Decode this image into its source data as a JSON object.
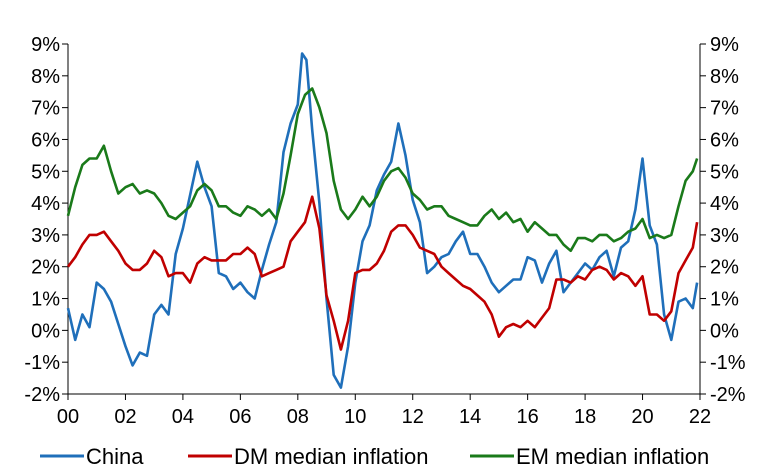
{
  "chart_data": {
    "type": "line",
    "title": "",
    "xlabel": "",
    "ylabel": "",
    "x_ticks": [
      "00",
      "02",
      "04",
      "06",
      "08",
      "10",
      "12",
      "14",
      "16",
      "18",
      "20",
      "22"
    ],
    "y_ticks": [
      "9%",
      "8%",
      "7%",
      "6%",
      "5%",
      "4%",
      "3%",
      "2%",
      "1%",
      "0%",
      "-1%",
      "-2%"
    ],
    "ylim": [
      -2,
      9
    ],
    "xlim": [
      2000,
      2022
    ],
    "grid": false,
    "legend_position": "bottom",
    "series": [
      {
        "name": "China",
        "color": "#1f6fba",
        "points": [
          [
            2000.0,
            0.7
          ],
          [
            2000.25,
            -0.3
          ],
          [
            2000.5,
            0.5
          ],
          [
            2000.75,
            0.1
          ],
          [
            2001.0,
            1.5
          ],
          [
            2001.25,
            1.3
          ],
          [
            2001.5,
            0.9
          ],
          [
            2001.75,
            0.2
          ],
          [
            2002.0,
            -0.5
          ],
          [
            2002.25,
            -1.1
          ],
          [
            2002.5,
            -0.7
          ],
          [
            2002.75,
            -0.8
          ],
          [
            2003.0,
            0.5
          ],
          [
            2003.25,
            0.8
          ],
          [
            2003.5,
            0.5
          ],
          [
            2003.75,
            2.4
          ],
          [
            2004.0,
            3.2
          ],
          [
            2004.5,
            5.3
          ],
          [
            2004.75,
            4.5
          ],
          [
            2005.0,
            3.9
          ],
          [
            2005.25,
            1.8
          ],
          [
            2005.5,
            1.7
          ],
          [
            2005.75,
            1.3
          ],
          [
            2006.0,
            1.5
          ],
          [
            2006.25,
            1.2
          ],
          [
            2006.5,
            1.0
          ],
          [
            2006.75,
            1.9
          ],
          [
            2007.0,
            2.7
          ],
          [
            2007.25,
            3.4
          ],
          [
            2007.5,
            5.6
          ],
          [
            2007.75,
            6.5
          ],
          [
            2008.0,
            7.1
          ],
          [
            2008.15,
            8.7
          ],
          [
            2008.3,
            8.5
          ],
          [
            2008.5,
            6.3
          ],
          [
            2008.75,
            4.0
          ],
          [
            2009.0,
            1.0
          ],
          [
            2009.25,
            -1.4
          ],
          [
            2009.5,
            -1.8
          ],
          [
            2009.75,
            -0.5
          ],
          [
            2010.0,
            1.5
          ],
          [
            2010.25,
            2.8
          ],
          [
            2010.5,
            3.3
          ],
          [
            2010.75,
            4.4
          ],
          [
            2011.0,
            4.9
          ],
          [
            2011.25,
            5.3
          ],
          [
            2011.5,
            6.5
          ],
          [
            2011.75,
            5.5
          ],
          [
            2012.0,
            4.1
          ],
          [
            2012.25,
            3.4
          ],
          [
            2012.5,
            1.8
          ],
          [
            2012.75,
            2.0
          ],
          [
            2013.0,
            2.3
          ],
          [
            2013.25,
            2.4
          ],
          [
            2013.5,
            2.8
          ],
          [
            2013.75,
            3.1
          ],
          [
            2014.0,
            2.4
          ],
          [
            2014.25,
            2.4
          ],
          [
            2014.5,
            2.0
          ],
          [
            2014.75,
            1.5
          ],
          [
            2015.0,
            1.2
          ],
          [
            2015.25,
            1.4
          ],
          [
            2015.5,
            1.6
          ],
          [
            2015.75,
            1.6
          ],
          [
            2016.0,
            2.3
          ],
          [
            2016.25,
            2.2
          ],
          [
            2016.5,
            1.5
          ],
          [
            2016.75,
            2.1
          ],
          [
            2017.0,
            2.5
          ],
          [
            2017.25,
            1.2
          ],
          [
            2017.5,
            1.5
          ],
          [
            2017.75,
            1.8
          ],
          [
            2018.0,
            2.1
          ],
          [
            2018.25,
            1.9
          ],
          [
            2018.5,
            2.3
          ],
          [
            2018.75,
            2.5
          ],
          [
            2019.0,
            1.7
          ],
          [
            2019.25,
            2.6
          ],
          [
            2019.5,
            2.8
          ],
          [
            2019.75,
            3.8
          ],
          [
            2020.0,
            5.4
          ],
          [
            2020.25,
            3.3
          ],
          [
            2020.5,
            2.7
          ],
          [
            2020.75,
            0.5
          ],
          [
            2021.0,
            -0.3
          ],
          [
            2021.25,
            0.9
          ],
          [
            2021.5,
            1.0
          ],
          [
            2021.75,
            0.7
          ],
          [
            2021.9,
            1.5
          ]
        ]
      },
      {
        "name": "DM median inflation",
        "color": "#c00000",
        "points": [
          [
            2000.0,
            2.0
          ],
          [
            2000.25,
            2.3
          ],
          [
            2000.5,
            2.7
          ],
          [
            2000.75,
            3.0
          ],
          [
            2001.0,
            3.0
          ],
          [
            2001.25,
            3.1
          ],
          [
            2001.5,
            2.8
          ],
          [
            2001.75,
            2.5
          ],
          [
            2002.0,
            2.1
          ],
          [
            2002.25,
            1.9
          ],
          [
            2002.5,
            1.9
          ],
          [
            2002.75,
            2.1
          ],
          [
            2003.0,
            2.5
          ],
          [
            2003.25,
            2.3
          ],
          [
            2003.5,
            1.7
          ],
          [
            2003.75,
            1.8
          ],
          [
            2004.0,
            1.8
          ],
          [
            2004.25,
            1.5
          ],
          [
            2004.5,
            2.1
          ],
          [
            2004.75,
            2.3
          ],
          [
            2005.0,
            2.2
          ],
          [
            2005.25,
            2.2
          ],
          [
            2005.5,
            2.2
          ],
          [
            2005.75,
            2.4
          ],
          [
            2006.0,
            2.4
          ],
          [
            2006.25,
            2.6
          ],
          [
            2006.5,
            2.4
          ],
          [
            2006.75,
            1.7
          ],
          [
            2007.0,
            1.8
          ],
          [
            2007.25,
            1.9
          ],
          [
            2007.5,
            2.0
          ],
          [
            2007.75,
            2.8
          ],
          [
            2008.0,
            3.1
          ],
          [
            2008.25,
            3.4
          ],
          [
            2008.5,
            4.2
          ],
          [
            2008.75,
            3.2
          ],
          [
            2009.0,
            1.1
          ],
          [
            2009.25,
            0.3
          ],
          [
            2009.5,
            -0.6
          ],
          [
            2009.75,
            0.3
          ],
          [
            2010.0,
            1.8
          ],
          [
            2010.25,
            1.9
          ],
          [
            2010.5,
            1.9
          ],
          [
            2010.75,
            2.1
          ],
          [
            2011.0,
            2.5
          ],
          [
            2011.25,
            3.1
          ],
          [
            2011.5,
            3.3
          ],
          [
            2011.75,
            3.3
          ],
          [
            2012.0,
            3.0
          ],
          [
            2012.25,
            2.6
          ],
          [
            2012.5,
            2.5
          ],
          [
            2012.75,
            2.4
          ],
          [
            2013.0,
            2.0
          ],
          [
            2013.25,
            1.8
          ],
          [
            2013.5,
            1.6
          ],
          [
            2013.75,
            1.4
          ],
          [
            2014.0,
            1.3
          ],
          [
            2014.25,
            1.1
          ],
          [
            2014.5,
            0.9
          ],
          [
            2014.75,
            0.5
          ],
          [
            2015.0,
            -0.2
          ],
          [
            2015.25,
            0.1
          ],
          [
            2015.5,
            0.2
          ],
          [
            2015.75,
            0.1
          ],
          [
            2016.0,
            0.3
          ],
          [
            2016.25,
            0.1
          ],
          [
            2016.5,
            0.4
          ],
          [
            2016.75,
            0.7
          ],
          [
            2017.0,
            1.6
          ],
          [
            2017.25,
            1.6
          ],
          [
            2017.5,
            1.5
          ],
          [
            2017.75,
            1.7
          ],
          [
            2018.0,
            1.6
          ],
          [
            2018.25,
            1.9
          ],
          [
            2018.5,
            2.0
          ],
          [
            2018.75,
            1.9
          ],
          [
            2019.0,
            1.6
          ],
          [
            2019.25,
            1.8
          ],
          [
            2019.5,
            1.7
          ],
          [
            2019.75,
            1.4
          ],
          [
            2020.0,
            1.7
          ],
          [
            2020.25,
            0.5
          ],
          [
            2020.5,
            0.5
          ],
          [
            2020.75,
            0.3
          ],
          [
            2021.0,
            0.6
          ],
          [
            2021.25,
            1.8
          ],
          [
            2021.5,
            2.2
          ],
          [
            2021.75,
            2.6
          ],
          [
            2021.9,
            3.4
          ]
        ]
      },
      {
        "name": "EM median inflation",
        "color": "#1a7a1a",
        "points": [
          [
            2000.0,
            3.6
          ],
          [
            2000.25,
            4.5
          ],
          [
            2000.5,
            5.2
          ],
          [
            2000.75,
            5.4
          ],
          [
            2001.0,
            5.4
          ],
          [
            2001.25,
            5.8
          ],
          [
            2001.5,
            5.0
          ],
          [
            2001.75,
            4.3
          ],
          [
            2002.0,
            4.5
          ],
          [
            2002.25,
            4.6
          ],
          [
            2002.5,
            4.3
          ],
          [
            2002.75,
            4.4
          ],
          [
            2003.0,
            4.3
          ],
          [
            2003.25,
            4.0
          ],
          [
            2003.5,
            3.6
          ],
          [
            2003.75,
            3.5
          ],
          [
            2004.0,
            3.7
          ],
          [
            2004.25,
            3.9
          ],
          [
            2004.5,
            4.4
          ],
          [
            2004.75,
            4.6
          ],
          [
            2005.0,
            4.4
          ],
          [
            2005.25,
            3.9
          ],
          [
            2005.5,
            3.9
          ],
          [
            2005.75,
            3.7
          ],
          [
            2006.0,
            3.6
          ],
          [
            2006.25,
            3.9
          ],
          [
            2006.5,
            3.8
          ],
          [
            2006.75,
            3.6
          ],
          [
            2007.0,
            3.8
          ],
          [
            2007.25,
            3.5
          ],
          [
            2007.5,
            4.3
          ],
          [
            2007.75,
            5.5
          ],
          [
            2008.0,
            6.8
          ],
          [
            2008.25,
            7.4
          ],
          [
            2008.5,
            7.6
          ],
          [
            2008.75,
            7.0
          ],
          [
            2009.0,
            6.2
          ],
          [
            2009.25,
            4.7
          ],
          [
            2009.5,
            3.8
          ],
          [
            2009.75,
            3.5
          ],
          [
            2010.0,
            3.8
          ],
          [
            2010.25,
            4.2
          ],
          [
            2010.5,
            3.9
          ],
          [
            2010.75,
            4.2
          ],
          [
            2011.0,
            4.7
          ],
          [
            2011.25,
            5.0
          ],
          [
            2011.5,
            5.1
          ],
          [
            2011.75,
            4.8
          ],
          [
            2012.0,
            4.3
          ],
          [
            2012.25,
            4.1
          ],
          [
            2012.5,
            3.8
          ],
          [
            2012.75,
            3.9
          ],
          [
            2013.0,
            3.9
          ],
          [
            2013.25,
            3.6
          ],
          [
            2013.5,
            3.5
          ],
          [
            2013.75,
            3.4
          ],
          [
            2014.0,
            3.3
          ],
          [
            2014.25,
            3.3
          ],
          [
            2014.5,
            3.6
          ],
          [
            2014.75,
            3.8
          ],
          [
            2015.0,
            3.5
          ],
          [
            2015.25,
            3.7
          ],
          [
            2015.5,
            3.4
          ],
          [
            2015.75,
            3.5
          ],
          [
            2016.0,
            3.1
          ],
          [
            2016.25,
            3.4
          ],
          [
            2016.5,
            3.2
          ],
          [
            2016.75,
            3.0
          ],
          [
            2017.0,
            3.0
          ],
          [
            2017.25,
            2.7
          ],
          [
            2017.5,
            2.5
          ],
          [
            2017.75,
            2.9
          ],
          [
            2018.0,
            2.9
          ],
          [
            2018.25,
            2.8
          ],
          [
            2018.5,
            3.0
          ],
          [
            2018.75,
            3.0
          ],
          [
            2019.0,
            2.8
          ],
          [
            2019.25,
            2.9
          ],
          [
            2019.5,
            3.1
          ],
          [
            2019.75,
            3.2
          ],
          [
            2020.0,
            3.5
          ],
          [
            2020.25,
            2.9
          ],
          [
            2020.5,
            3.0
          ],
          [
            2020.75,
            2.9
          ],
          [
            2021.0,
            3.0
          ],
          [
            2021.25,
            3.9
          ],
          [
            2021.5,
            4.7
          ],
          [
            2021.75,
            5.0
          ],
          [
            2021.9,
            5.4
          ]
        ]
      }
    ]
  }
}
